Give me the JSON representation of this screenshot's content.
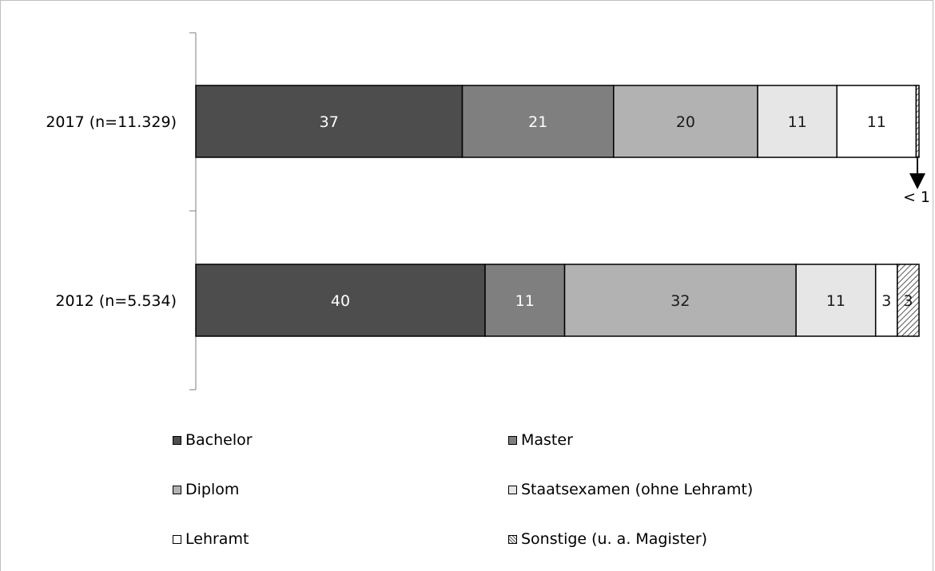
{
  "chart_data": {
    "type": "bar",
    "orientation": "horizontal",
    "stacked": true,
    "categories": [
      "2017 (n=11.329)",
      "2012 (n=5.534)"
    ],
    "series": [
      {
        "name": "Bachelor",
        "values": [
          37,
          40
        ],
        "color": "#4d4d4d",
        "label_color": "#ffffff"
      },
      {
        "name": "Master",
        "values": [
          21,
          11
        ],
        "color": "#7f7f7f",
        "label_color": "#ffffff"
      },
      {
        "name": "Diplom",
        "values": [
          20,
          32
        ],
        "color": "#b2b2b2",
        "label_color": "#1a1a1a"
      },
      {
        "name": "Staatsexamen (ohne Lehramt)",
        "values": [
          11,
          11
        ],
        "color": "#e6e6e6",
        "label_color": "#1a1a1a"
      },
      {
        "name": "Lehramt",
        "values": [
          11,
          3
        ],
        "color": "#ffffff",
        "label_color": "#1a1a1a"
      },
      {
        "name": "Sonstige (u. a. Magister)",
        "values": [
          0.4,
          3
        ],
        "color": "hatch",
        "label_color": "#1a1a1a"
      }
    ],
    "data_labels": [
      [
        "37",
        "21",
        "20",
        "11",
        "11",
        ""
      ],
      [
        "40",
        "11",
        "32",
        "11",
        "3",
        "3"
      ]
    ],
    "annotation": "< 1",
    "legend_position": "bottom",
    "grid": false
  }
}
